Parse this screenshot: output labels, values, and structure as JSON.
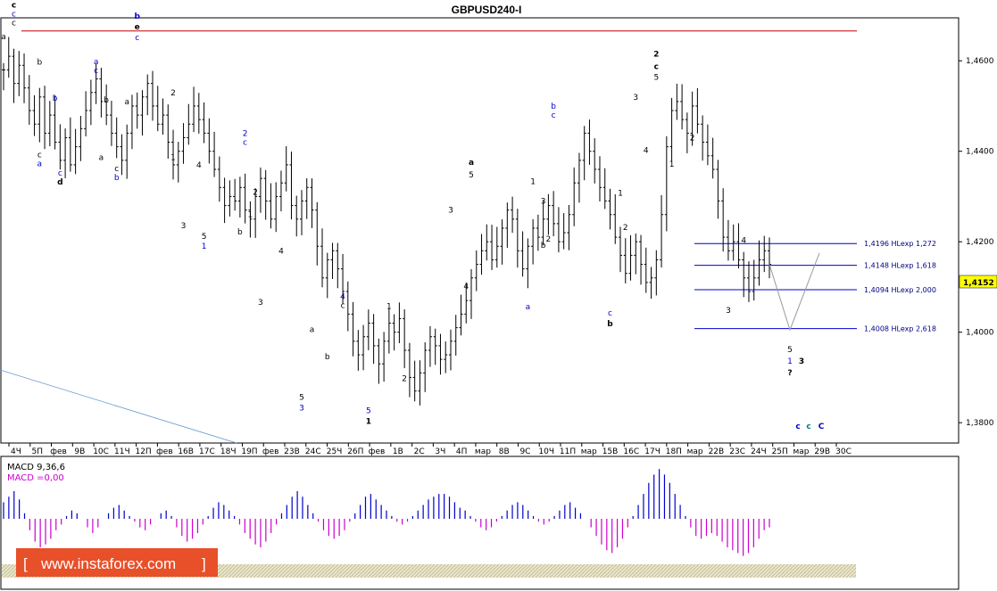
{
  "chart_data": {
    "type": "candlestick",
    "title": "GBPUSD240-I",
    "ylim": [
      1.3755,
      1.4695
    ],
    "y_ticks": [
      "1,4600",
      "1,4400",
      "1,4200",
      "1,4000",
      "1,3800"
    ],
    "x_ticks": [
      "4Ч",
      "5П",
      "фев",
      "9В",
      "10С",
      "11Ч",
      "12П",
      "фев",
      "16В",
      "17С",
      "18Ч",
      "19П",
      "фев",
      "23В",
      "24С",
      "25Ч",
      "26П",
      "фев",
      "1В",
      "2С",
      "3Ч",
      "4П",
      "мар",
      "8В",
      "9С",
      "10Ч",
      "11П",
      "мар",
      "15В",
      "16С",
      "17Ч",
      "18П",
      "мар",
      "22В",
      "23С",
      "24Ч",
      "25П",
      "мар",
      "29В",
      "30С"
    ],
    "price": [
      1.458,
      1.461,
      1.455,
      1.459,
      1.454,
      1.449,
      1.446,
      1.452,
      1.444,
      1.448,
      1.442,
      1.438,
      1.443,
      1.437,
      1.441,
      1.445,
      1.449,
      1.453,
      1.456,
      1.451,
      1.448,
      1.444,
      1.441,
      1.438,
      1.444,
      1.45,
      1.448,
      1.452,
      1.455,
      1.45,
      1.446,
      1.448,
      1.442,
      1.437,
      1.44,
      1.443,
      1.446,
      1.45,
      1.447,
      1.444,
      1.44,
      1.436,
      1.432,
      1.428,
      1.43,
      1.429,
      1.432,
      1.427,
      1.425,
      1.43,
      1.434,
      1.429,
      1.425,
      1.43,
      1.433,
      1.437,
      1.428,
      1.425,
      1.429,
      1.432,
      1.427,
      1.419,
      1.412,
      1.416,
      1.418,
      1.414,
      1.409,
      1.404,
      1.398,
      1.395,
      1.399,
      1.402,
      1.397,
      1.393,
      1.398,
      1.402,
      1.4,
      1.403,
      1.396,
      1.39,
      1.387,
      1.391,
      1.396,
      1.399,
      1.397,
      1.394,
      1.395,
      1.398,
      1.401,
      1.404,
      1.407,
      1.412,
      1.415,
      1.418,
      1.42,
      1.416,
      1.419,
      1.423,
      1.427,
      1.425,
      1.418,
      1.414,
      1.419,
      1.423,
      1.421,
      1.425,
      1.428,
      1.424,
      1.42,
      1.422,
      1.426,
      1.433,
      1.438,
      1.444,
      1.44,
      1.436,
      1.432,
      1.429,
      1.426,
      1.421,
      1.417,
      1.413,
      1.417,
      1.42,
      1.415,
      1.411,
      1.412,
      1.416,
      1.426,
      1.441,
      1.449,
      1.451,
      1.447,
      1.444,
      1.45,
      1.446,
      1.442,
      1.439,
      1.436,
      1.429,
      1.421,
      1.418,
      1.42,
      1.416,
      1.412,
      1.409,
      1.412,
      1.416,
      1.418,
      1.415
    ],
    "levels": [
      {
        "label": "1,4196 HLexp 1,272",
        "value": 1.4196
      },
      {
        "label": "1,4148 HLexp 1,618",
        "value": 1.4148
      },
      {
        "label": "1,4094 HLexp 2,000",
        "value": 1.4094
      },
      {
        "label": "1,4008 HLexp 2,618",
        "value": 1.4008
      }
    ],
    "resistance_level": 1.4666,
    "current_price": "1,4152",
    "projection": [
      1.415,
      1.4005,
      1.4175
    ],
    "wave_labels": [
      {
        "t": "c",
        "i": 2,
        "y": 1.467,
        "c": "#000000",
        "b": true,
        "dy": -24
      },
      {
        "t": "c",
        "i": 2,
        "y": 1.467,
        "c": "#0000cc",
        "b": false,
        "dy": -14
      },
      {
        "t": "c",
        "i": 2,
        "y": 1.467,
        "c": "#000000",
        "b": false,
        "dy": -4
      },
      {
        "t": "a",
        "i": 0,
        "y": 1.464,
        "c": "#000000",
        "b": false,
        "dy": -4
      },
      {
        "t": "b",
        "i": 7,
        "y": 1.458,
        "c": "#000000",
        "b": false,
        "dy": -6
      },
      {
        "t": "b",
        "i": 10,
        "y": 1.45,
        "c": "#0000cc",
        "b": false,
        "dy": -6
      },
      {
        "t": "c",
        "i": 7,
        "y": 1.441,
        "c": "#000000",
        "b": false,
        "dy": 12
      },
      {
        "t": "a",
        "i": 7,
        "y": 1.441,
        "c": "#0000cc",
        "b": false,
        "dy": 22
      },
      {
        "t": "c",
        "i": 11,
        "y": 1.437,
        "c": "#0000cc",
        "b": false,
        "dy": 12
      },
      {
        "t": "d",
        "i": 11,
        "y": 1.437,
        "c": "#000000",
        "b": true,
        "dy": 22
      },
      {
        "t": "a",
        "i": 18,
        "y": 1.4565,
        "c": "#0000cc",
        "b": false,
        "dy": -14
      },
      {
        "t": "c",
        "i": 18,
        "y": 1.4565,
        "c": "#0000cc",
        "b": false,
        "dy": -4
      },
      {
        "t": "b",
        "i": 20,
        "y": 1.45,
        "c": "#000000",
        "b": false,
        "dy": -4
      },
      {
        "t": "a",
        "i": 19,
        "y": 1.44,
        "c": "#000000",
        "b": false,
        "dy": 10
      },
      {
        "t": "c",
        "i": 22,
        "y": 1.438,
        "c": "#000000",
        "b": false,
        "dy": 12
      },
      {
        "t": "b",
        "i": 22,
        "y": 1.438,
        "c": "#0000cc",
        "b": false,
        "dy": 22
      },
      {
        "t": "b",
        "i": 26,
        "y": 1.463,
        "c": "#0000cc",
        "b": true,
        "dy": -32
      },
      {
        "t": "e",
        "i": 26,
        "y": 1.463,
        "c": "#000000",
        "b": true,
        "dy": -20
      },
      {
        "t": "c",
        "i": 26,
        "y": 1.463,
        "c": "#0000cc",
        "b": false,
        "dy": -8
      },
      {
        "t": "a",
        "i": 24,
        "y": 1.45,
        "c": "#000000",
        "b": false,
        "dy": -2
      },
      {
        "t": "2",
        "i": 33,
        "y": 1.452,
        "c": "#000000",
        "b": false,
        "dy": -2
      },
      {
        "t": "1",
        "i": 33,
        "y": 1.44,
        "c": "#000000",
        "b": false,
        "dy": 10
      },
      {
        "t": "4",
        "i": 38,
        "y": 1.436,
        "c": "#000000",
        "b": false,
        "dy": -2
      },
      {
        "t": "3",
        "i": 35,
        "y": 1.425,
        "c": "#000000",
        "b": false,
        "dy": 10
      },
      {
        "t": "5",
        "i": 39,
        "y": 1.423,
        "c": "#000000",
        "b": false,
        "dy": 12
      },
      {
        "t": "1",
        "i": 39,
        "y": 1.423,
        "c": "#0000cc",
        "b": false,
        "dy": 23
      },
      {
        "t": "2",
        "i": 47,
        "y": 1.441,
        "c": "#0000cc",
        "b": false,
        "dy": -12
      },
      {
        "t": "c",
        "i": 47,
        "y": 1.441,
        "c": "#0000cc",
        "b": false,
        "dy": -2
      },
      {
        "t": "1",
        "i": 48,
        "y": 1.427,
        "c": "#000000",
        "b": false,
        "dy": 8
      },
      {
        "t": "2",
        "i": 49,
        "y": 1.43,
        "c": "#000000",
        "b": false,
        "dy": -2
      },
      {
        "t": "b",
        "i": 46,
        "y": 1.424,
        "c": "#000000",
        "b": false,
        "dy": 12
      },
      {
        "t": "4",
        "i": 54,
        "y": 1.417,
        "c": "#000000",
        "b": false,
        "dy": -2
      },
      {
        "t": "3",
        "i": 50,
        "y": 1.408,
        "c": "#000000",
        "b": false,
        "dy": 10
      },
      {
        "t": "a",
        "i": 60,
        "y": 1.4,
        "c": "#000000",
        "b": false,
        "dy": 0
      },
      {
        "t": "4",
        "i": 66,
        "y": 1.405,
        "c": "#0000cc",
        "b": false,
        "dy": -12
      },
      {
        "t": "c",
        "i": 66,
        "y": 1.405,
        "c": "#000000",
        "b": false,
        "dy": -2
      },
      {
        "t": "b",
        "i": 63,
        "y": 1.396,
        "c": "#000000",
        "b": false,
        "dy": 10
      },
      {
        "t": "5",
        "i": 58,
        "y": 1.387,
        "c": "#000000",
        "b": false,
        "dy": 10
      },
      {
        "t": "3",
        "i": 58,
        "y": 1.387,
        "c": "#0000cc",
        "b": false,
        "dy": 22
      },
      {
        "t": "1",
        "i": 75,
        "y": 1.404,
        "c": "#000000",
        "b": false,
        "dy": -6
      },
      {
        "t": "2",
        "i": 78,
        "y": 1.392,
        "c": "#000000",
        "b": false,
        "dy": 14
      },
      {
        "t": "5",
        "i": 71,
        "y": 1.3845,
        "c": "#0000cc",
        "b": false,
        "dy": 12
      },
      {
        "t": "1",
        "i": 71,
        "y": 1.3845,
        "c": "#000000",
        "b": true,
        "dy": 24
      },
      {
        "t": "3",
        "i": 87,
        "y": 1.426,
        "c": "#000000",
        "b": false,
        "dy": -2
      },
      {
        "t": "a",
        "i": 91,
        "y": 1.433,
        "c": "#000000",
        "b": true,
        "dy": -20
      },
      {
        "t": "5",
        "i": 91,
        "y": 1.433,
        "c": "#000000",
        "b": false,
        "dy": -6
      },
      {
        "t": "4",
        "i": 90,
        "y": 1.412,
        "c": "#000000",
        "b": false,
        "dy": 12
      },
      {
        "t": "1",
        "i": 103,
        "y": 1.432,
        "c": "#000000",
        "b": false,
        "dy": -4
      },
      {
        "t": "3",
        "i": 105,
        "y": 1.428,
        "c": "#000000",
        "b": false,
        "dy": -2
      },
      {
        "t": "2",
        "i": 106,
        "y": 1.422,
        "c": "#000000",
        "b": false,
        "dy": 10
      },
      {
        "t": "b",
        "i": 107,
        "y": 1.447,
        "c": "#0000cc",
        "b": false,
        "dy": -12
      },
      {
        "t": "c",
        "i": 107,
        "y": 1.447,
        "c": "#0000cc",
        "b": false,
        "dy": -2
      },
      {
        "t": "b",
        "i": 105,
        "y": 1.421,
        "c": "#000000",
        "b": false,
        "dy": 12
      },
      {
        "t": "a",
        "i": 102,
        "y": 1.407,
        "c": "#0000cc",
        "b": false,
        "dy": 10
      },
      {
        "t": "1",
        "i": 120,
        "y": 1.429,
        "c": "#000000",
        "b": false,
        "dy": -6
      },
      {
        "t": "2",
        "i": 121,
        "y": 1.425,
        "c": "#000000",
        "b": false,
        "dy": 12
      },
      {
        "t": "c",
        "i": 118,
        "y": 1.406,
        "c": "#0000cc",
        "b": false,
        "dy": 12
      },
      {
        "t": "b",
        "i": 118,
        "y": 1.406,
        "c": "#000000",
        "b": true,
        "dy": 24
      },
      {
        "t": "2",
        "i": 127,
        "y": 1.455,
        "c": "#000000",
        "b": true,
        "dy": -30
      },
      {
        "t": "c",
        "i": 127,
        "y": 1.455,
        "c": "#000000",
        "b": true,
        "dy": -16
      },
      {
        "t": "5",
        "i": 127,
        "y": 1.455,
        "c": "#000000",
        "b": false,
        "dy": -4
      },
      {
        "t": "3",
        "i": 123,
        "y": 1.451,
        "c": "#000000",
        "b": false,
        "dy": -2
      },
      {
        "t": "4",
        "i": 125,
        "y": 1.442,
        "c": "#000000",
        "b": false,
        "dy": 12
      },
      {
        "t": "1",
        "i": 130,
        "y": 1.439,
        "c": "#000000",
        "b": false,
        "dy": 12
      },
      {
        "t": "2",
        "i": 134,
        "y": 1.442,
        "c": "#000000",
        "b": false,
        "dy": -2
      },
      {
        "t": "4",
        "i": 144,
        "y": 1.419,
        "c": "#000000",
        "b": false,
        "dy": -4
      },
      {
        "t": "3",
        "i": 141,
        "y": 1.407,
        "c": "#000000",
        "b": false,
        "dy": 14
      }
    ],
    "future_labels": [
      {
        "t": "5",
        "x": 885,
        "y": 395,
        "c": "#000000",
        "b": false
      },
      {
        "t": "1",
        "x": 885,
        "y": 408,
        "c": "#0000cc",
        "b": false
      },
      {
        "t": "3",
        "x": 898,
        "y": 408,
        "c": "#000000",
        "b": true
      },
      {
        "t": "?",
        "x": 885,
        "y": 421,
        "c": "#000000",
        "b": true
      },
      {
        "t": "c",
        "x": 894,
        "y": 481,
        "c": "#0000cc",
        "b": true
      },
      {
        "t": "c",
        "x": 906,
        "y": 481,
        "c": "#008080",
        "b": true
      },
      {
        "t": "C",
        "x": 920,
        "y": 481,
        "c": "#0000cc",
        "b": true
      }
    ],
    "macd": {
      "params": "MACD 9,36,6",
      "value_label": "MACD =0,00",
      "values": [
        0.6,
        0.8,
        1.0,
        0.7,
        0.2,
        -0.4,
        -0.8,
        -1.0,
        -0.9,
        -0.7,
        -0.4,
        -0.2,
        0.1,
        0.3,
        0.2,
        0.0,
        -0.3,
        -0.5,
        -0.3,
        0.0,
        0.2,
        0.4,
        0.5,
        0.3,
        0.1,
        -0.1,
        -0.3,
        -0.4,
        -0.2,
        0.0,
        0.2,
        0.3,
        0.1,
        -0.3,
        -0.6,
        -0.8,
        -0.7,
        -0.5,
        -0.2,
        0.1,
        0.4,
        0.6,
        0.5,
        0.3,
        0.1,
        -0.2,
        -0.5,
        -0.7,
        -0.9,
        -1.0,
        -0.8,
        -0.5,
        -0.2,
        0.2,
        0.5,
        0.8,
        1.0,
        0.8,
        0.5,
        0.2,
        -0.1,
        -0.4,
        -0.6,
        -0.7,
        -0.6,
        -0.4,
        -0.1,
        0.2,
        0.5,
        0.8,
        0.9,
        0.7,
        0.5,
        0.3,
        0.1,
        -0.1,
        -0.2,
        -0.1,
        0.1,
        0.3,
        0.5,
        0.7,
        0.8,
        0.9,
        0.9,
        0.8,
        0.6,
        0.4,
        0.3,
        0.1,
        -0.1,
        -0.3,
        -0.4,
        -0.3,
        -0.1,
        0.1,
        0.3,
        0.5,
        0.6,
        0.5,
        0.3,
        0.1,
        -0.1,
        -0.2,
        -0.1,
        0.1,
        0.3,
        0.5,
        0.6,
        0.4,
        0.2,
        0.0,
        -0.3,
        -0.6,
        -0.9,
        -1.1,
        -1.2,
        -1.0,
        -0.7,
        -0.3,
        0.1,
        0.5,
        0.9,
        1.3,
        1.6,
        1.8,
        1.6,
        1.3,
        0.9,
        0.5,
        0.1,
        -0.3,
        -0.6,
        -0.7,
        -0.6,
        -0.5,
        -0.6,
        -0.8,
        -1.0,
        -1.1,
        -1.2,
        -1.3,
        -1.2,
        -1.0,
        -0.7,
        -0.4,
        -0.3
      ],
      "range": [
        -1.5,
        2.0
      ]
    }
  },
  "brand": {
    "text": "www.instaforex.com"
  },
  "colors": {
    "bars": "#000000",
    "resistance": "#cc0000",
    "levels": "#0000cc",
    "projection": "#999999",
    "macd_pos": "#0000cc",
    "macd_neg": "#cc00cc",
    "trendline": "#6699cc",
    "price_box": "#ffff00",
    "brand_bg": "#e8502a"
  }
}
